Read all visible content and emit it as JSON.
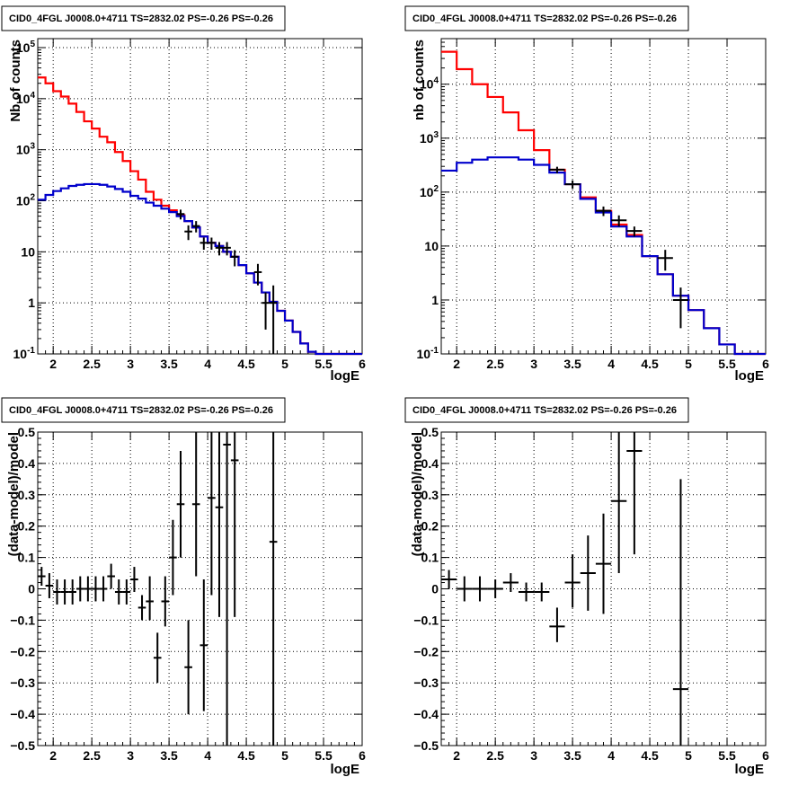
{
  "panels": [
    {
      "id": "top-left",
      "title": "CID0_4FGL J0008.0+4711 TS=2832.02 PS=-0.26 PS=-0.26",
      "xlabel": "logE",
      "ylabel": "Nb of counts",
      "ylog": true,
      "xlim": [
        1.8,
        6.0
      ],
      "ylim": [
        0.1,
        150000
      ],
      "xticks": [
        "2",
        "2.5",
        "3",
        "3.5",
        "4",
        "4.5",
        "5",
        "5.5",
        "6"
      ],
      "yticks": [
        "10^-1",
        "1",
        "10",
        "10^2",
        "10^3",
        "10^4",
        "10^5"
      ]
    },
    {
      "id": "top-right",
      "title": "CID0_4FGL J0008.0+4711 TS=2832.02 PS=-0.26 PS=-0.26",
      "xlabel": "logE",
      "ylabel": "nb of counts",
      "ylog": true,
      "xlim": [
        1.8,
        6.0
      ],
      "ylim": [
        0.1,
        70000
      ],
      "xticks": [
        "2",
        "2.5",
        "3",
        "3.5",
        "4",
        "4.5",
        "5",
        "5.5",
        "6"
      ],
      "yticks": [
        "10^-1",
        "1",
        "10",
        "10^2",
        "10^3",
        "10^4"
      ]
    },
    {
      "id": "bottom-left",
      "title": "CID0_4FGL J0008.0+4711 TS=2832.02 PS=-0.26 PS=-0.26",
      "xlabel": "logE",
      "ylabel": "(data-model)/model",
      "ylog": false,
      "xlim": [
        1.8,
        6.0
      ],
      "ylim": [
        -0.5,
        0.5
      ],
      "xticks": [
        "2",
        "2.5",
        "3",
        "3.5",
        "4",
        "4.5",
        "5",
        "5.5",
        "6"
      ],
      "yticks": [
        "−0.5",
        "−0.4",
        "−0.3",
        "−0.2",
        "−0.1",
        "0",
        "0.1",
        "0.2",
        "0.3",
        "0.4",
        "0.5"
      ]
    },
    {
      "id": "bottom-right",
      "title": "CID0_4FGL J0008.0+4711 TS=2832.02 PS=-0.26 PS=-0.26",
      "xlabel": "logE",
      "ylabel": "(data-model)/model",
      "ylog": false,
      "xlim": [
        1.8,
        6.0
      ],
      "ylim": [
        -0.5,
        0.5
      ],
      "xticks": [
        "2",
        "2.5",
        "3",
        "3.5",
        "4",
        "4.5",
        "5",
        "5.5",
        "6"
      ],
      "yticks": [
        "−0.5",
        "−0.4",
        "−0.3",
        "−0.2",
        "−0.1",
        "0",
        "0.1",
        "0.2",
        "0.3",
        "0.4",
        "0.5"
      ]
    }
  ],
  "colors": {
    "total_model": "#ff0000",
    "source_model": "#0000cc",
    "data": "#000000"
  },
  "chart_data": [
    {
      "panel": "top-left",
      "type": "line",
      "ylog": true,
      "series": [
        {
          "role": "total_model",
          "color": "#ff0000",
          "step": true,
          "edges": [
            1.8,
            1.9,
            2.0,
            2.1,
            2.2,
            2.3,
            2.4,
            2.5,
            2.6,
            2.7,
            2.8,
            2.9,
            3.0,
            3.1,
            3.2,
            3.3,
            3.4,
            3.5,
            3.6,
            3.7,
            3.8,
            3.9,
            4.0,
            4.1,
            4.2,
            4.3,
            4.4,
            4.5,
            4.6,
            4.7,
            4.8,
            4.9,
            5.0,
            5.1,
            5.2,
            5.3,
            5.4,
            5.5,
            6.0
          ],
          "values": [
            26000,
            20000,
            14000,
            11000,
            8000,
            5500,
            3600,
            2600,
            1800,
            1400,
            900,
            600,
            380,
            260,
            150,
            105,
            80,
            65,
            52,
            40,
            30,
            20,
            15,
            13,
            10,
            8,
            5.5,
            3.8,
            2.5,
            1.6,
            1.05,
            0.7,
            0.45,
            0.27,
            0.16,
            0.11,
            0.1,
            0.1
          ]
        },
        {
          "role": "source_model",
          "color": "#0000cc",
          "step": true,
          "edges": [
            1.8,
            1.9,
            2.0,
            2.1,
            2.2,
            2.3,
            2.4,
            2.5,
            2.6,
            2.7,
            2.8,
            2.9,
            3.0,
            3.1,
            3.2,
            3.3,
            3.4,
            3.5,
            3.6,
            3.7,
            3.8,
            3.9,
            4.0,
            4.1,
            4.2,
            4.3,
            4.4,
            4.5,
            4.6,
            4.7,
            4.8,
            4.9,
            5.0,
            5.1,
            5.2,
            5.3,
            5.4,
            5.5,
            6.0
          ],
          "values": [
            105,
            130,
            155,
            175,
            195,
            205,
            212,
            212,
            205,
            190,
            170,
            150,
            125,
            110,
            92,
            80,
            70,
            60,
            50,
            40,
            30,
            20,
            15,
            13,
            10,
            8,
            5.5,
            3.8,
            2.5,
            1.6,
            1.05,
            0.7,
            0.45,
            0.27,
            0.16,
            0.11,
            0.1,
            0.1
          ]
        },
        {
          "role": "data",
          "color": "#000000",
          "errorbars": true,
          "x": [
            3.65,
            3.75,
            3.85,
            3.95,
            4.05,
            4.15,
            4.25,
            4.35,
            4.65,
            4.75,
            4.85
          ],
          "xerr": 0.05,
          "y": [
            55,
            25,
            32,
            15,
            15,
            12,
            12,
            8,
            4,
            1,
            1
          ],
          "ylo": [
            43,
            17,
            24,
            11,
            11,
            8.5,
            8.5,
            5.2,
            2.2,
            0.3,
            0.08
          ],
          "yhi": [
            67,
            33,
            40,
            19,
            19,
            15.5,
            15.5,
            10.8,
            5.8,
            1.6,
            2.2
          ]
        }
      ]
    },
    {
      "panel": "top-right",
      "type": "line",
      "ylog": true,
      "series": [
        {
          "role": "total_model",
          "color": "#ff0000",
          "step": true,
          "edges": [
            1.8,
            2.0,
            2.2,
            2.4,
            2.6,
            2.8,
            3.0,
            3.2,
            3.4,
            3.6,
            3.8,
            4.0,
            4.2,
            4.4,
            4.6,
            4.8,
            5.0,
            5.2,
            5.4,
            5.6,
            6.0
          ],
          "values": [
            40000,
            19000,
            10000,
            5800,
            3000,
            1400,
            600,
            260,
            140,
            80,
            45,
            25,
            16,
            6.5,
            3.0,
            1.2,
            0.65,
            0.3,
            0.15,
            0.1
          ]
        },
        {
          "role": "source_model",
          "color": "#0000cc",
          "step": true,
          "edges": [
            1.8,
            2.0,
            2.2,
            2.4,
            2.6,
            2.8,
            3.0,
            3.2,
            3.4,
            3.6,
            3.8,
            4.0,
            4.2,
            4.4,
            4.6,
            4.8,
            5.0,
            5.2,
            5.4,
            5.6,
            6.0
          ],
          "values": [
            250,
            350,
            400,
            440,
            440,
            400,
            320,
            230,
            140,
            75,
            42,
            23,
            15,
            6.5,
            3.0,
            1.2,
            0.65,
            0.3,
            0.15,
            0.1
          ]
        },
        {
          "role": "data",
          "color": "#000000",
          "errorbars": true,
          "x": [
            3.3,
            3.5,
            3.9,
            4.1,
            4.3,
            4.7,
            4.9
          ],
          "xerr": 0.1,
          "y": [
            260,
            140,
            45,
            30,
            19,
            6,
            1
          ],
          "ylo": [
            225,
            115,
            36,
            23,
            15,
            3.5,
            0.3
          ],
          "yhi": [
            295,
            165,
            54,
            37,
            23,
            8.5,
            1.7
          ]
        }
      ]
    },
    {
      "panel": "bottom-left",
      "type": "scatter",
      "errorbars": true,
      "xerr": 0.05,
      "x": [
        1.85,
        1.95,
        2.05,
        2.15,
        2.25,
        2.35,
        2.45,
        2.55,
        2.65,
        2.75,
        2.85,
        2.95,
        3.05,
        3.15,
        3.25,
        3.35,
        3.45,
        3.55,
        3.65,
        3.75,
        3.85,
        3.95,
        4.05,
        4.15,
        4.25,
        4.35,
        4.85
      ],
      "y": [
        0.04,
        0.01,
        -0.01,
        -0.01,
        -0.01,
        0.0,
        0.0,
        0.0,
        0.0,
        0.04,
        -0.01,
        -0.01,
        0.03,
        -0.06,
        -0.04,
        -0.22,
        -0.04,
        0.1,
        0.27,
        -0.25,
        0.27,
        -0.18,
        0.29,
        0.26,
        0.46,
        0.41,
        0.15
      ],
      "ylo": [
        0.01,
        -0.03,
        -0.05,
        -0.05,
        -0.05,
        -0.04,
        -0.04,
        -0.04,
        -0.04,
        0.0,
        -0.05,
        -0.05,
        -0.01,
        -0.1,
        -0.1,
        -0.3,
        -0.12,
        -0.02,
        0.1,
        -0.4,
        0.04,
        -0.39,
        -0.02,
        -0.09,
        -0.5,
        -0.09,
        -0.5
      ],
      "yhi": [
        0.07,
        0.05,
        0.03,
        0.03,
        0.03,
        0.04,
        0.04,
        0.04,
        0.04,
        0.08,
        0.03,
        0.03,
        0.07,
        -0.02,
        0.04,
        -0.14,
        0.04,
        0.22,
        0.44,
        -0.1,
        0.5,
        0.03,
        0.5,
        0.5,
        0.5,
        0.5,
        0.5
      ]
    },
    {
      "panel": "bottom-right",
      "type": "scatter",
      "errorbars": true,
      "xerr": 0.1,
      "x": [
        1.9,
        2.1,
        2.3,
        2.5,
        2.7,
        2.9,
        3.1,
        3.3,
        3.5,
        3.7,
        3.9,
        4.1,
        4.3,
        4.9
      ],
      "y": [
        0.03,
        0.0,
        0.0,
        0.0,
        0.02,
        -0.01,
        -0.01,
        -0.12,
        0.02,
        0.05,
        0.08,
        0.28,
        0.44,
        -0.32
      ],
      "ylo": [
        0.0,
        -0.04,
        -0.04,
        -0.03,
        -0.01,
        -0.04,
        -0.04,
        -0.17,
        -0.06,
        -0.07,
        -0.08,
        0.05,
        0.11,
        -0.5
      ],
      "yhi": [
        0.06,
        0.04,
        0.04,
        0.03,
        0.05,
        0.02,
        0.02,
        -0.06,
        0.11,
        0.17,
        0.24,
        0.5,
        0.5,
        0.35
      ]
    }
  ]
}
